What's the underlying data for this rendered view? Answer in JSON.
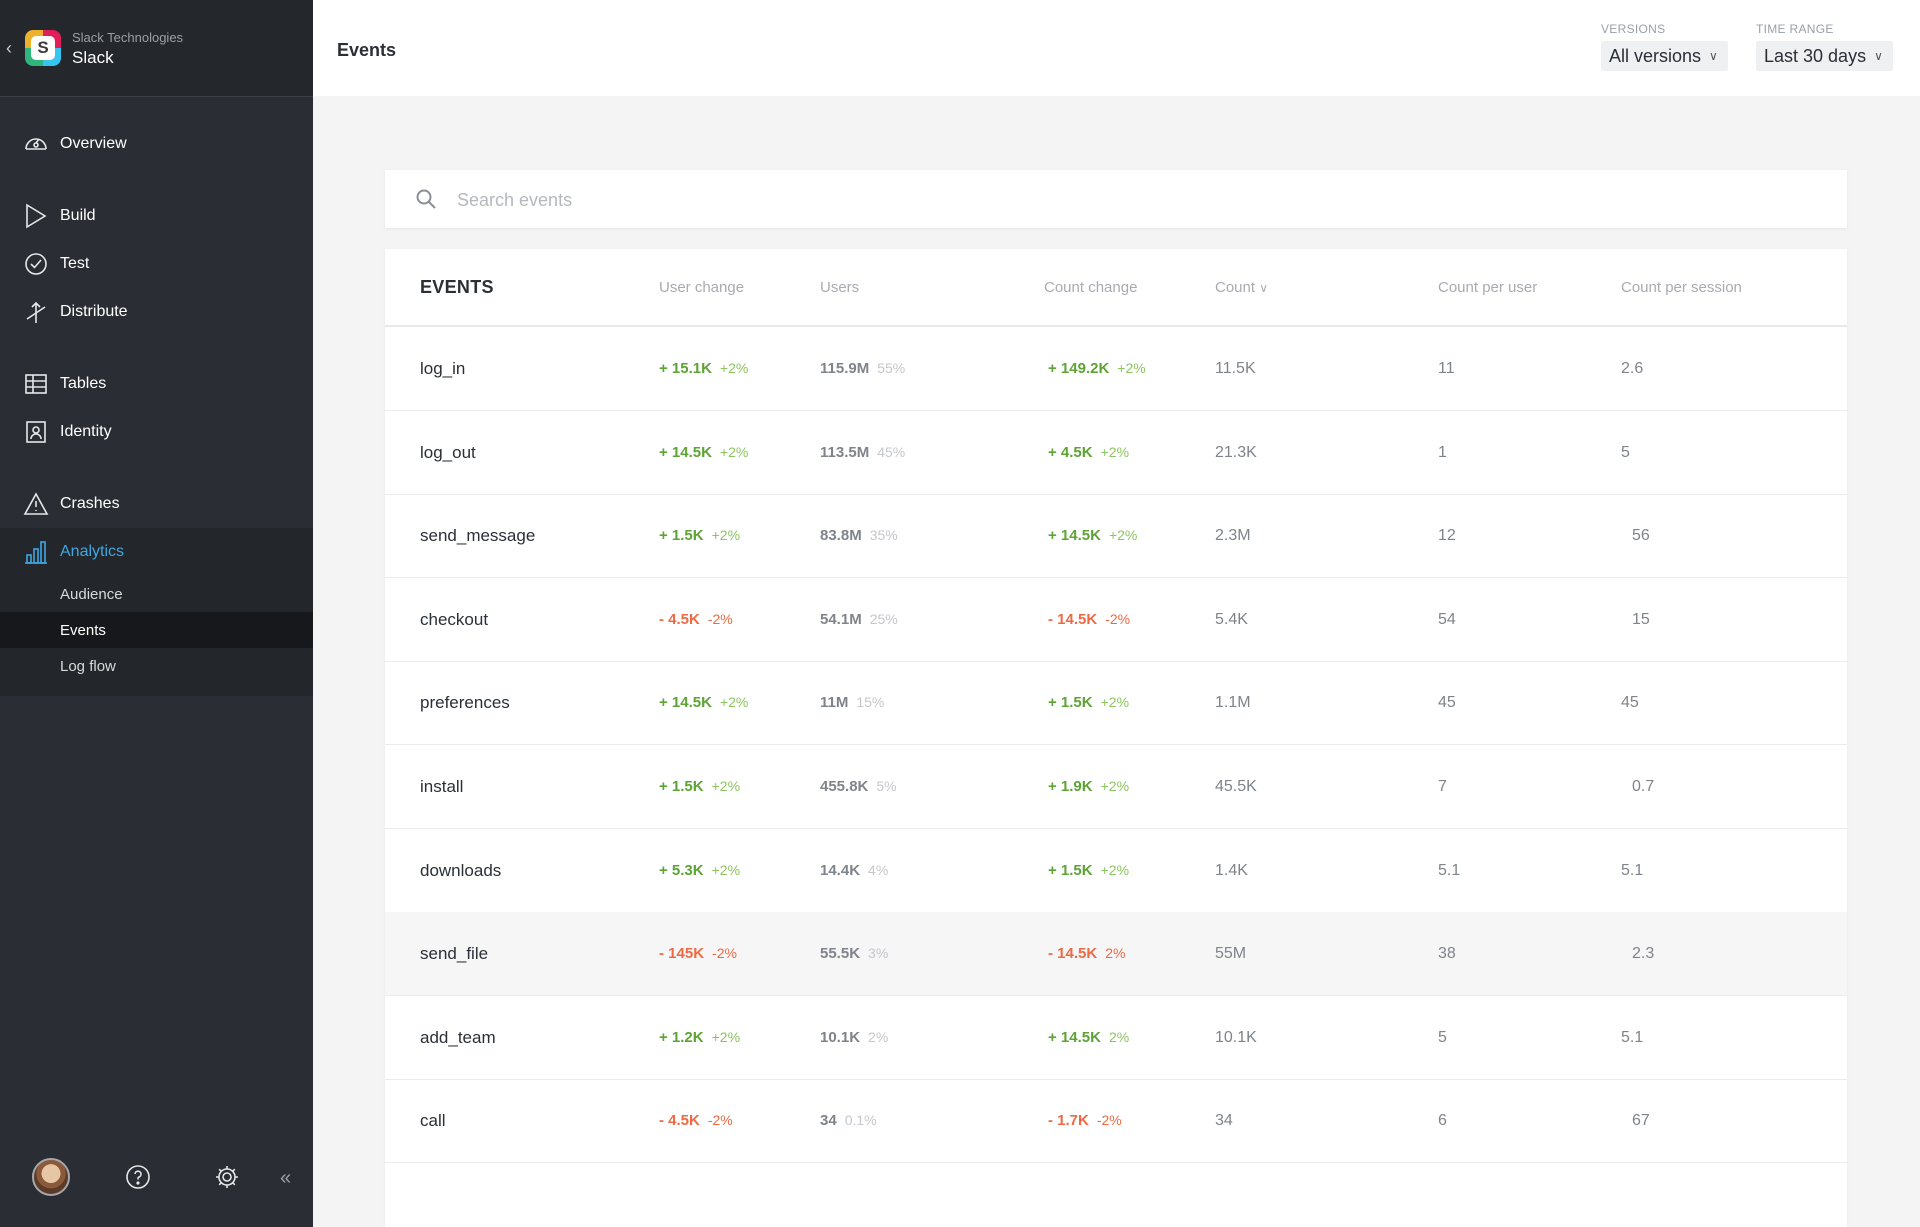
{
  "app": {
    "org": "Slack Technologies",
    "name": "Slack",
    "logo_letter": "S"
  },
  "sidebar": {
    "items": [
      {
        "label": "Overview",
        "icon": "gauge-icon"
      },
      {
        "label": "Build",
        "icon": "play-icon"
      },
      {
        "label": "Test",
        "icon": "check-circle-icon"
      },
      {
        "label": "Distribute",
        "icon": "distribute-icon"
      },
      {
        "label": "Tables",
        "icon": "tables-icon"
      },
      {
        "label": "Identity",
        "icon": "identity-icon"
      },
      {
        "label": "Crashes",
        "icon": "warning-icon"
      },
      {
        "label": "Analytics",
        "icon": "bar-chart-icon"
      }
    ],
    "sub_items": [
      "Audience",
      "Events",
      "Log flow"
    ],
    "selected_sub": "Events"
  },
  "header": {
    "title": "Events",
    "versions_label": "VERSIONS",
    "versions_value": "All versions",
    "range_label": "TIME RANGE",
    "range_value": "Last 30 days"
  },
  "search": {
    "placeholder": "Search events"
  },
  "table": {
    "columns": [
      "EVENTS",
      "User change",
      "Users",
      "Count change",
      "Count",
      "Count per user",
      "Count per session"
    ],
    "sort_column": "Count",
    "rows": [
      {
        "name": "log_in",
        "uc": "+ 15.1K",
        "ucp": "+2%",
        "users": "115.9M",
        "up": "55%",
        "cc": "+ 149.2K",
        "ccp": "+2%",
        "count": "11.5K",
        "cpu": "11",
        "cps": "2.6",
        "trend": "pos"
      },
      {
        "name": "log_out",
        "uc": "+ 14.5K",
        "ucp": "+2%",
        "users": "113.5M",
        "up": "45%",
        "cc": "+ 4.5K",
        "ccp": "+2%",
        "count": "21.3K",
        "cpu": "1",
        "cps": "5",
        "trend": "pos"
      },
      {
        "name": "send_message",
        "uc": "+ 1.5K",
        "ucp": "+2%",
        "users": "83.8M",
        "up": "35%",
        "cc": "+ 14.5K",
        "ccp": "+2%",
        "count": "2.3M",
        "cpu": "12",
        "cps": "56",
        "trend": "pos"
      },
      {
        "name": "checkout",
        "uc": "- 4.5K",
        "ucp": "-2%",
        "users": "54.1M",
        "up": "25%",
        "cc": "- 14.5K",
        "ccp": "-2%",
        "count": "5.4K",
        "cpu": "54",
        "cps": "15",
        "trend": "neg"
      },
      {
        "name": "preferences",
        "uc": "+ 14.5K",
        "ucp": "+2%",
        "users": "11M",
        "up": "15%",
        "cc": "+ 1.5K",
        "ccp": "+2%",
        "count": "1.1M",
        "cpu": "45",
        "cps": "45",
        "trend": "pos"
      },
      {
        "name": "install",
        "uc": "+ 1.5K",
        "ucp": "+2%",
        "users": "455.8K",
        "up": "5%",
        "cc": "+ 1.9K",
        "ccp": "+2%",
        "count": "45.5K",
        "cpu": "7",
        "cps": "0.7",
        "trend": "pos"
      },
      {
        "name": "downloads",
        "uc": "+ 5.3K",
        "ucp": "+2%",
        "users": "14.4K",
        "up": "4%",
        "cc": "+ 1.5K",
        "ccp": "+2%",
        "count": "1.4K",
        "cpu": "5.1",
        "cps": "5.1",
        "trend": "pos"
      },
      {
        "name": "send_file",
        "uc": "- 145K",
        "ucp": "-2%",
        "users": "55.5K",
        "up": "3%",
        "cc": "- 14.5K",
        "ccp": "2%",
        "count": "55M",
        "cpu": "38",
        "cps": "2.3",
        "trend": "neg"
      },
      {
        "name": "add_team",
        "uc": "+ 1.2K",
        "ucp": "+2%",
        "users": "10.1K",
        "up": "2%",
        "cc": "+ 14.5K",
        "ccp": "2%",
        "count": "10.1K",
        "cpu": "5",
        "cps": "5.1",
        "trend": "pos"
      },
      {
        "name": "call",
        "uc": "- 4.5K",
        "ucp": "-2%",
        "users": "34",
        "up": "0.1%",
        "cc": "- 1.7K",
        "ccp": "-2%",
        "count": "34",
        "cpu": "6",
        "cps": "67",
        "trend": "neg"
      }
    ]
  },
  "colors": {
    "positive": "#5ea335",
    "negative": "#ee6a44",
    "accent": "#3fa7e2",
    "sidebar": "#2a2d33"
  }
}
